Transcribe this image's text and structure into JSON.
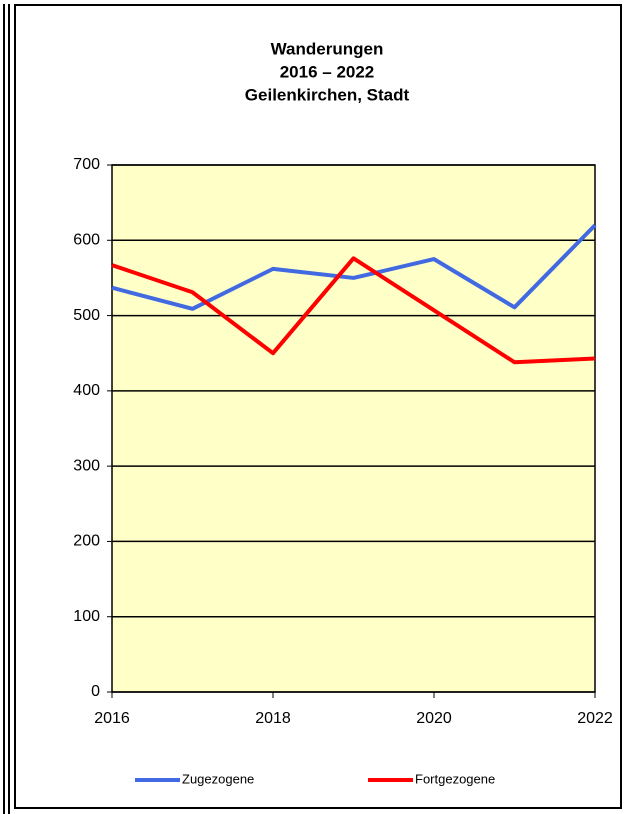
{
  "chart_data": {
    "type": "line",
    "title": [
      "Wanderungen",
      "2016 – 2022",
      "Geilenkirchen, Stadt"
    ],
    "x": [
      2016,
      2017,
      2018,
      2019,
      2020,
      2021,
      2022
    ],
    "series": [
      {
        "name": "Zugezogene",
        "color": "#4169e1",
        "values": [
          537,
          509,
          562,
          550,
          575,
          511,
          620
        ]
      },
      {
        "name": "Fortgezogene",
        "color": "#ff0000",
        "values": [
          567,
          531,
          450,
          576,
          507,
          438,
          443
        ]
      }
    ],
    "xlim": [
      2016,
      2022
    ],
    "xticks": [
      2016,
      2018,
      2020,
      2022
    ],
    "ylim": [
      0,
      700
    ],
    "yticks": [
      0,
      100,
      200,
      300,
      400,
      500,
      600,
      700
    ],
    "grid": true,
    "legend": "bottom",
    "background": "#ffffc8"
  }
}
